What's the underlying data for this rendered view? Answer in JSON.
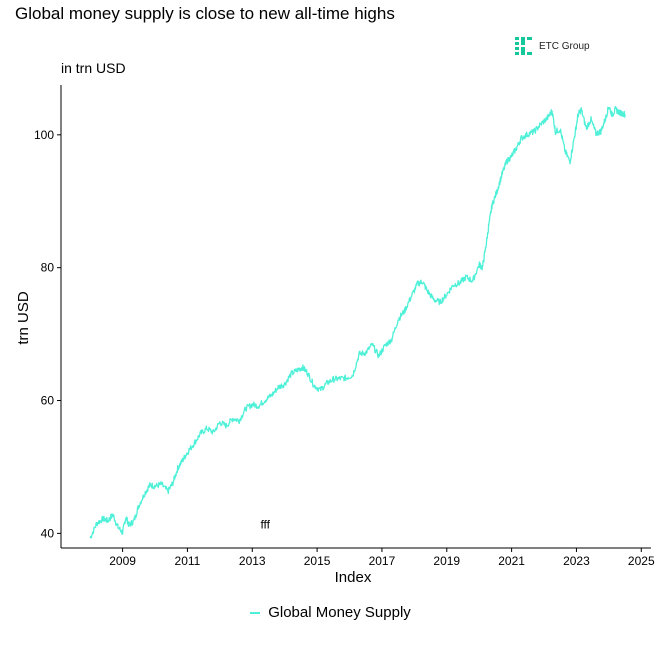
{
  "chart_data": {
    "type": "line",
    "title": "Global money supply is close to new all-time highs",
    "subtitle": "in trn USD",
    "xlabel": "Index",
    "ylabel": "trn USD",
    "xlim": [
      2007.1,
      2025.3
    ],
    "ylim": [
      37.8,
      107.5
    ],
    "x_ticks": [
      2009,
      2011,
      2013,
      2015,
      2017,
      2019,
      2021,
      2023,
      2025
    ],
    "y_ticks": [
      40,
      60,
      80,
      100
    ],
    "annotation": {
      "text": "fff",
      "x": 2013.4,
      "y": 40.7
    },
    "legend": {
      "position": "bottom",
      "entries": [
        "Global Money Supply"
      ]
    },
    "series": [
      {
        "name": "Global Money Supply",
        "color": "#4ff0d8",
        "x": [
          2008.0,
          2008.2,
          2008.4,
          2008.55,
          2008.7,
          2008.85,
          2009.0,
          2009.1,
          2009.2,
          2009.35,
          2009.5,
          2009.7,
          2009.85,
          2010.0,
          2010.2,
          2010.4,
          2010.55,
          2010.7,
          2010.85,
          2011.0,
          2011.2,
          2011.4,
          2011.6,
          2011.8,
          2012.0,
          2012.2,
          2012.4,
          2012.6,
          2012.8,
          2013.0,
          2013.2,
          2013.4,
          2013.6,
          2013.8,
          2014.0,
          2014.2,
          2014.4,
          2014.55,
          2014.7,
          2014.9,
          2015.1,
          2015.3,
          2015.5,
          2015.7,
          2015.9,
          2016.1,
          2016.3,
          2016.5,
          2016.7,
          2016.9,
          2017.1,
          2017.3,
          2017.5,
          2017.7,
          2017.9,
          2018.1,
          2018.25,
          2018.4,
          2018.6,
          2018.8,
          2019.0,
          2019.2,
          2019.4,
          2019.6,
          2019.8,
          2020.0,
          2020.1,
          2020.2,
          2020.3,
          2020.4,
          2020.55,
          2020.7,
          2020.85,
          2021.0,
          2021.15,
          2021.3,
          2021.5,
          2021.7,
          2021.9,
          2022.1,
          2022.25,
          2022.35,
          2022.5,
          2022.65,
          2022.8,
          2022.95,
          2023.05,
          2023.15,
          2023.3,
          2023.45,
          2023.6,
          2023.75,
          2023.9,
          2024.0,
          2024.1,
          2024.2,
          2024.35,
          2024.5
        ],
        "values": [
          39.3,
          41.5,
          42.2,
          41.9,
          42.8,
          41.0,
          40.1,
          42.5,
          41.2,
          41.9,
          44.2,
          46.2,
          47.3,
          47.1,
          47.4,
          46.3,
          47.6,
          49.8,
          51.0,
          52.2,
          53.5,
          55.0,
          55.8,
          55.2,
          56.7,
          56.2,
          57.3,
          57.0,
          58.8,
          59.4,
          59.2,
          60.1,
          60.8,
          62.0,
          62.5,
          64.0,
          64.6,
          65.0,
          64.2,
          62.3,
          61.6,
          62.6,
          63.2,
          63.3,
          63.4,
          63.8,
          67.0,
          67.2,
          68.4,
          66.7,
          68.3,
          69.2,
          72.2,
          73.5,
          75.6,
          77.6,
          77.9,
          76.5,
          75.2,
          74.8,
          76.0,
          77.4,
          77.7,
          78.6,
          78.0,
          80.5,
          80.0,
          83.0,
          86.5,
          89.5,
          91.5,
          94.0,
          96.0,
          96.8,
          98.0,
          99.5,
          100.1,
          100.5,
          101.6,
          102.5,
          103.6,
          100.5,
          100.8,
          97.5,
          96.0,
          100.0,
          103.0,
          103.8,
          101.0,
          102.3,
          100.2,
          100.5,
          102.5,
          104.3,
          103.0,
          103.8,
          103.3,
          103.1
        ]
      }
    ]
  },
  "logo": {
    "text": "ETC Group",
    "color": "#14c89b"
  }
}
